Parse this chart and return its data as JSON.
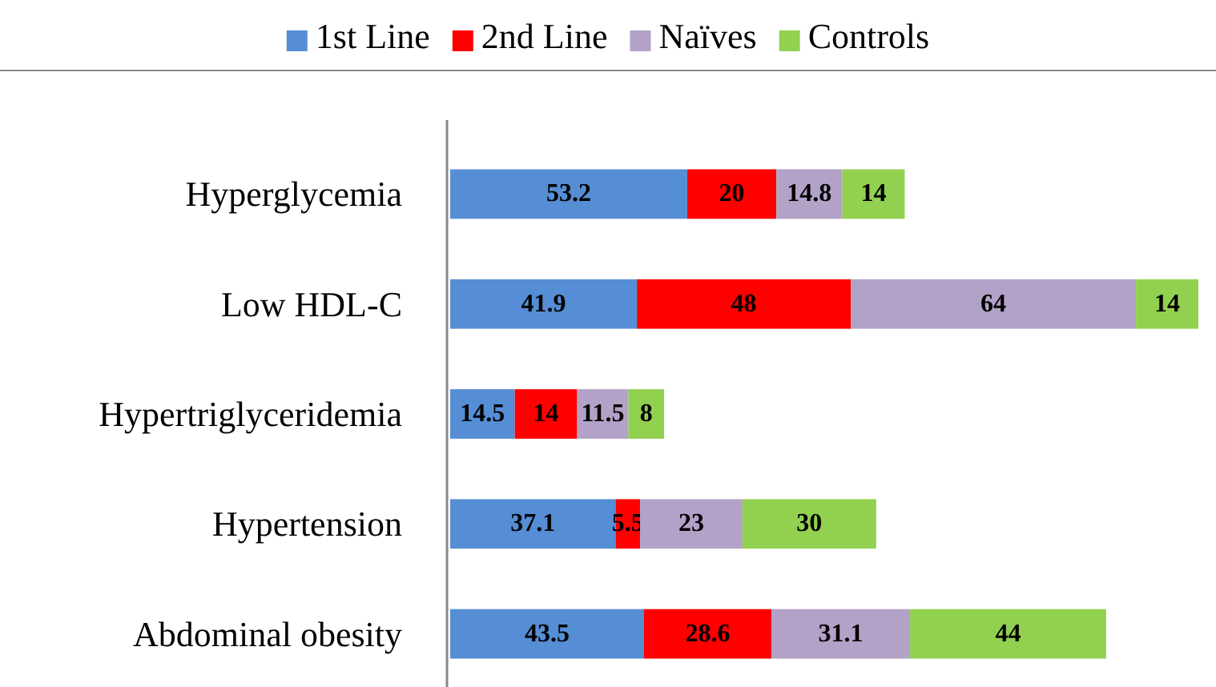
{
  "chart_data": {
    "type": "bar",
    "orientation": "horizontal",
    "stacked": true,
    "data_labels": true,
    "legend": "top",
    "categories": [
      "Hyperglycemia",
      "Low HDL-C",
      "Hypertriglyceridemia",
      "Hypertension",
      "Abdominal obesity"
    ],
    "series": [
      {
        "name": "1st Line",
        "color": "#558ed5",
        "values": [
          53.2,
          41.9,
          14.5,
          37.1,
          43.5
        ]
      },
      {
        "name": "2nd Line",
        "color": "#ff0000",
        "values": [
          20,
          48,
          14,
          5.5,
          28.6
        ]
      },
      {
        "name": "Naïves",
        "color": "#b3a2c7",
        "values": [
          14.8,
          64,
          11.5,
          23,
          31.1
        ]
      },
      {
        "name": "Controls",
        "color": "#92d050",
        "values": [
          14,
          14,
          8,
          30,
          44
        ]
      }
    ]
  }
}
